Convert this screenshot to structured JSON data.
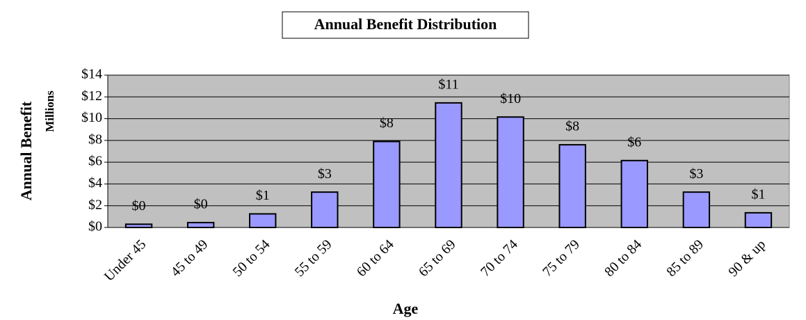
{
  "chart_data": {
    "type": "bar",
    "title": "Annual Benefit Distribution",
    "x_label": "Age",
    "y_label": "Annual Benefit",
    "y_unit_label": "Millions",
    "categories": [
      "Under 45",
      "45 to 49",
      "50 to 54",
      "55 to 59",
      "60 to 64",
      "65 to 69",
      "70 to 74",
      "75 to 79",
      "80 to 84",
      "85 to 89",
      "90 & up"
    ],
    "values": [
      0.3,
      0.45,
      1.25,
      3.25,
      7.9,
      11.45,
      10.15,
      7.6,
      6.15,
      3.25,
      1.35
    ],
    "value_labels": [
      "$0",
      "$0",
      "$1",
      "$3",
      "$8",
      "$11",
      "$10",
      "$8",
      "$6",
      "$3",
      "$1"
    ],
    "color": "#9999ff",
    "background": "#c0c0c0",
    "ylim": [
      0,
      14
    ],
    "yticks": [
      {
        "value": 0,
        "label": "$0"
      },
      {
        "value": 2,
        "label": "$2"
      },
      {
        "value": 4,
        "label": "$4"
      },
      {
        "value": 6,
        "label": "$6"
      },
      {
        "value": 8,
        "label": "$8"
      },
      {
        "value": 10,
        "label": "$10"
      },
      {
        "value": 12,
        "label": "$12"
      },
      {
        "value": 14,
        "label": "$14"
      }
    ],
    "grid": true
  }
}
